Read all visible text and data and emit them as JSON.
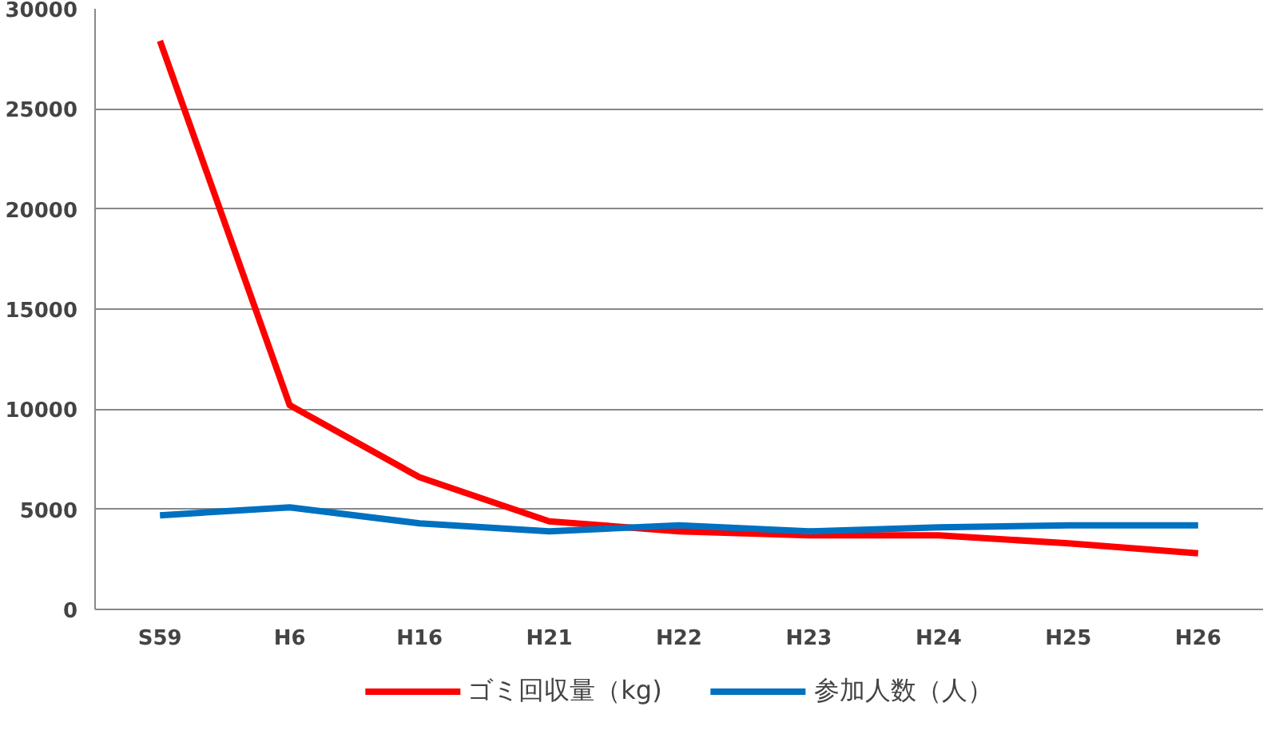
{
  "chart_data": {
    "type": "line",
    "categories": [
      "S59",
      "H6",
      "H16",
      "H21",
      "H22",
      "H23",
      "H24",
      "H25",
      "H26"
    ],
    "series": [
      {
        "name": "ゴミ回収量（kg)",
        "color": "#ff0000",
        "values": [
          28400,
          10200,
          6600,
          4400,
          3900,
          3700,
          3700,
          3300,
          2800
        ]
      },
      {
        "name": "参加人数（人）",
        "color": "#0070c0",
        "values": [
          4700,
          5100,
          4300,
          3900,
          4200,
          3900,
          4100,
          4200,
          4200
        ]
      }
    ],
    "ylim": [
      0,
      30000
    ],
    "yticks": [
      0,
      5000,
      10000,
      15000,
      20000,
      25000,
      30000
    ],
    "grid": "y",
    "legend": "bottom",
    "marker": "none",
    "line_style": "solid"
  }
}
